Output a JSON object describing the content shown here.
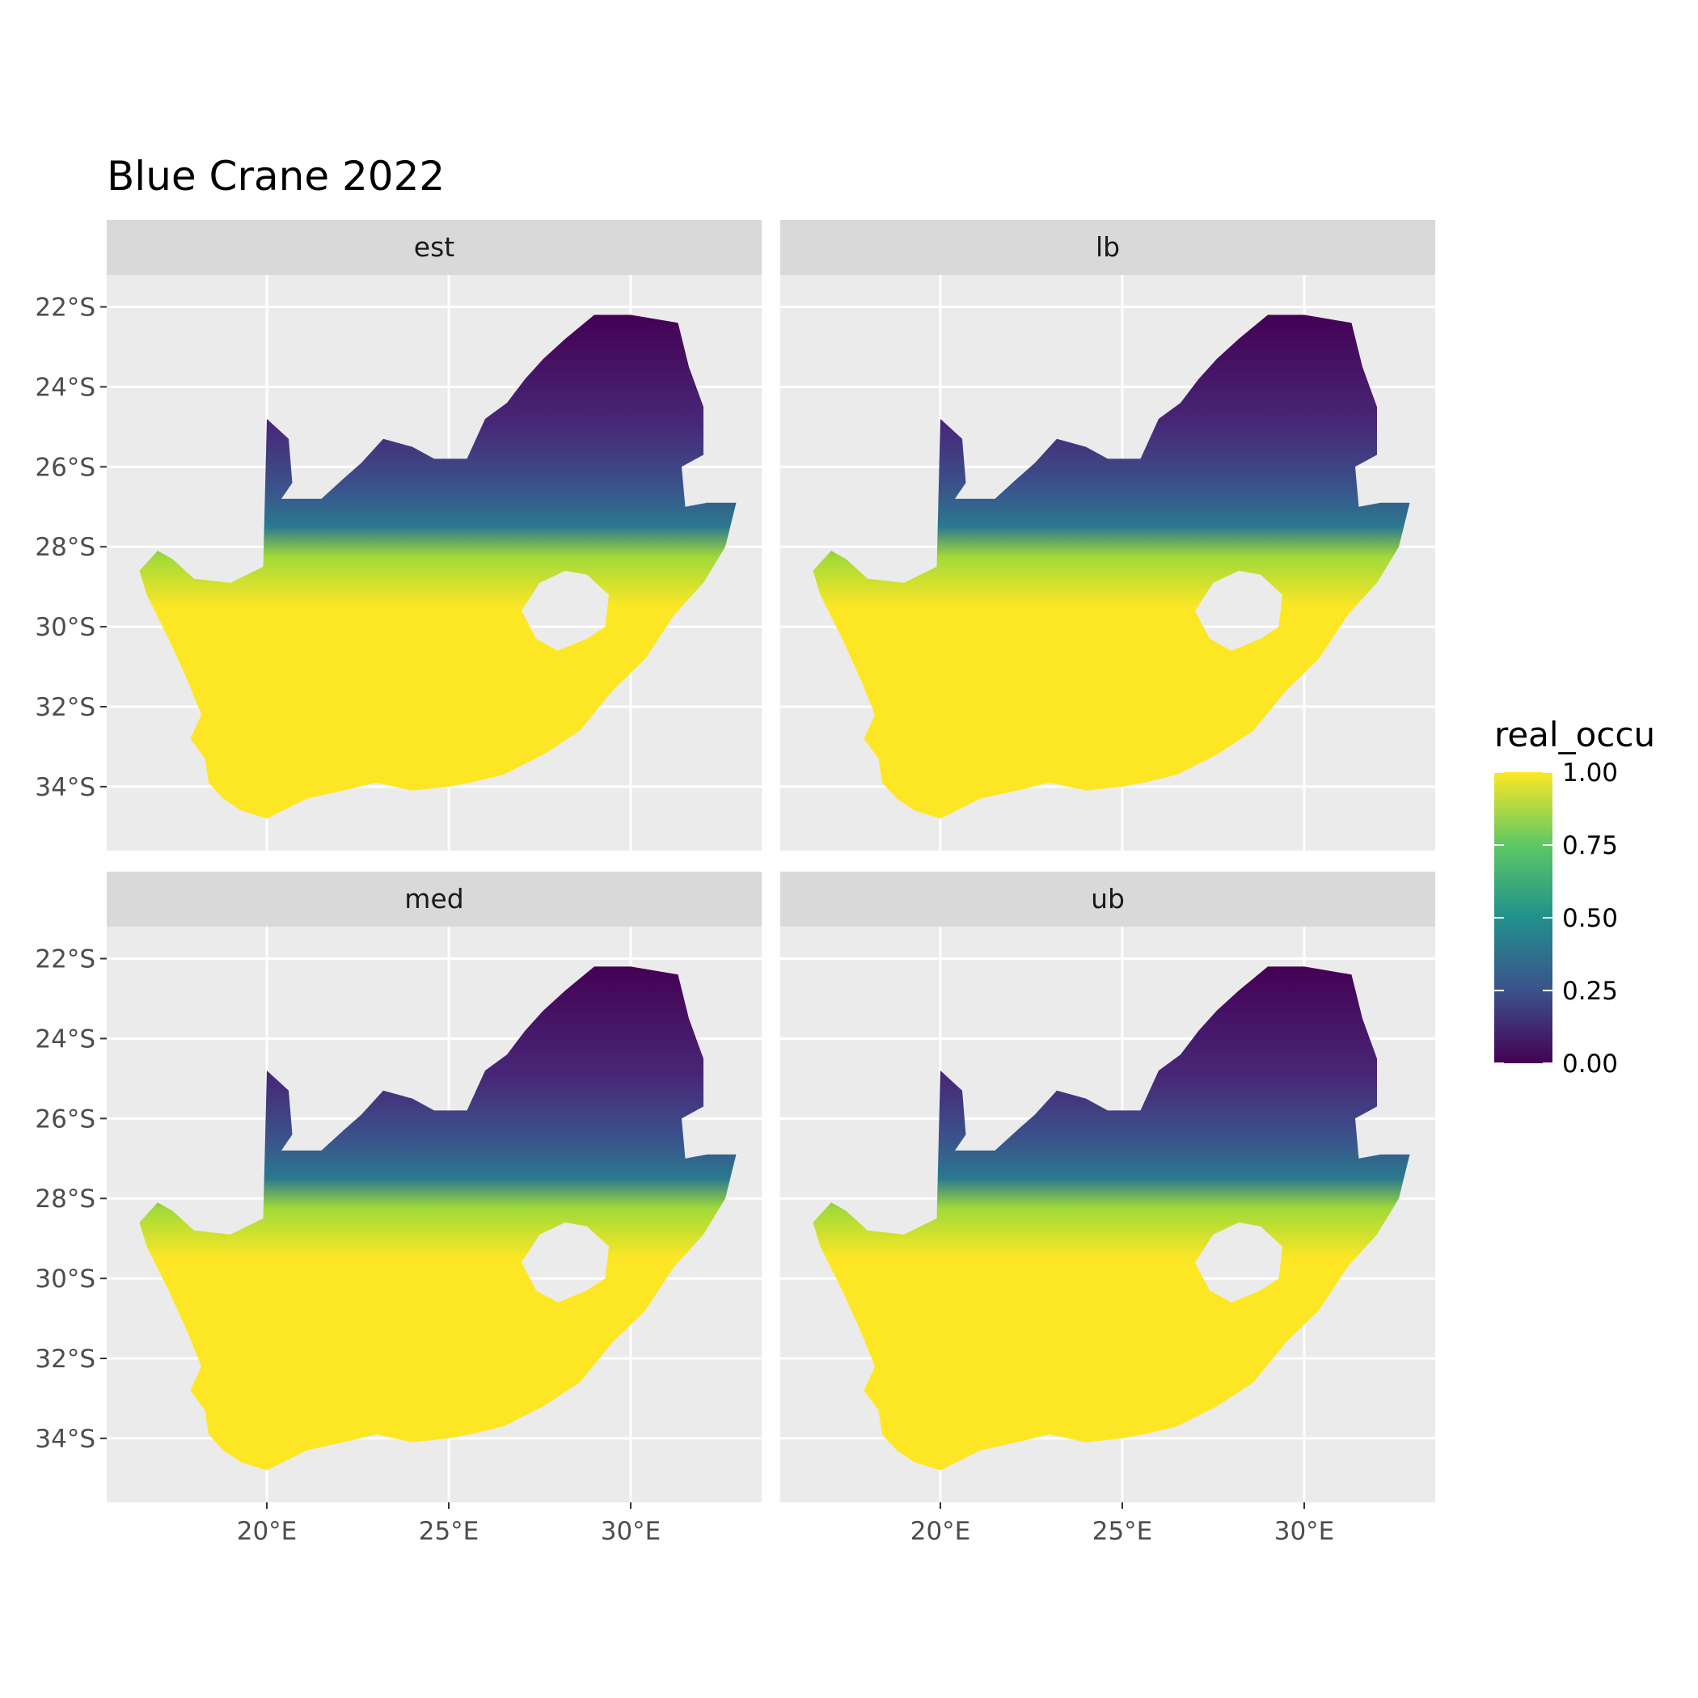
{
  "title": "Blue Crane 2022",
  "chart_data": {
    "type": "heatmap",
    "facets": [
      "est",
      "lb",
      "med",
      "ub"
    ],
    "x_ticks": [
      "20°E",
      "25°E",
      "30°E"
    ],
    "y_ticks": [
      "22°S",
      "24°S",
      "26°S",
      "28°S",
      "30°S",
      "32°S",
      "34°S"
    ],
    "x_tick_values": [
      20,
      25,
      30
    ],
    "y_tick_values": [
      -22,
      -24,
      -26,
      -28,
      -30,
      -32,
      -34
    ],
    "xlim": [
      15.6,
      33.6
    ],
    "ylim": [
      -35.6,
      -21.2
    ],
    "grid": true,
    "legend": {
      "title": "real_occu",
      "position": "right",
      "colormap": "viridis",
      "limits": [
        0,
        1
      ],
      "breaks": [
        1.0,
        0.75,
        0.5,
        0.25,
        0.0
      ],
      "labels": [
        "1.00",
        "0.75",
        "0.50",
        "0.25",
        "0.00"
      ]
    }
  },
  "colors": {
    "panel_bg": "#ebebeb",
    "strip_bg": "#d9d9d9",
    "grid": "#ffffff",
    "viridis": [
      "#440154",
      "#3b528b",
      "#21908c",
      "#5dc863",
      "#fde725"
    ]
  }
}
